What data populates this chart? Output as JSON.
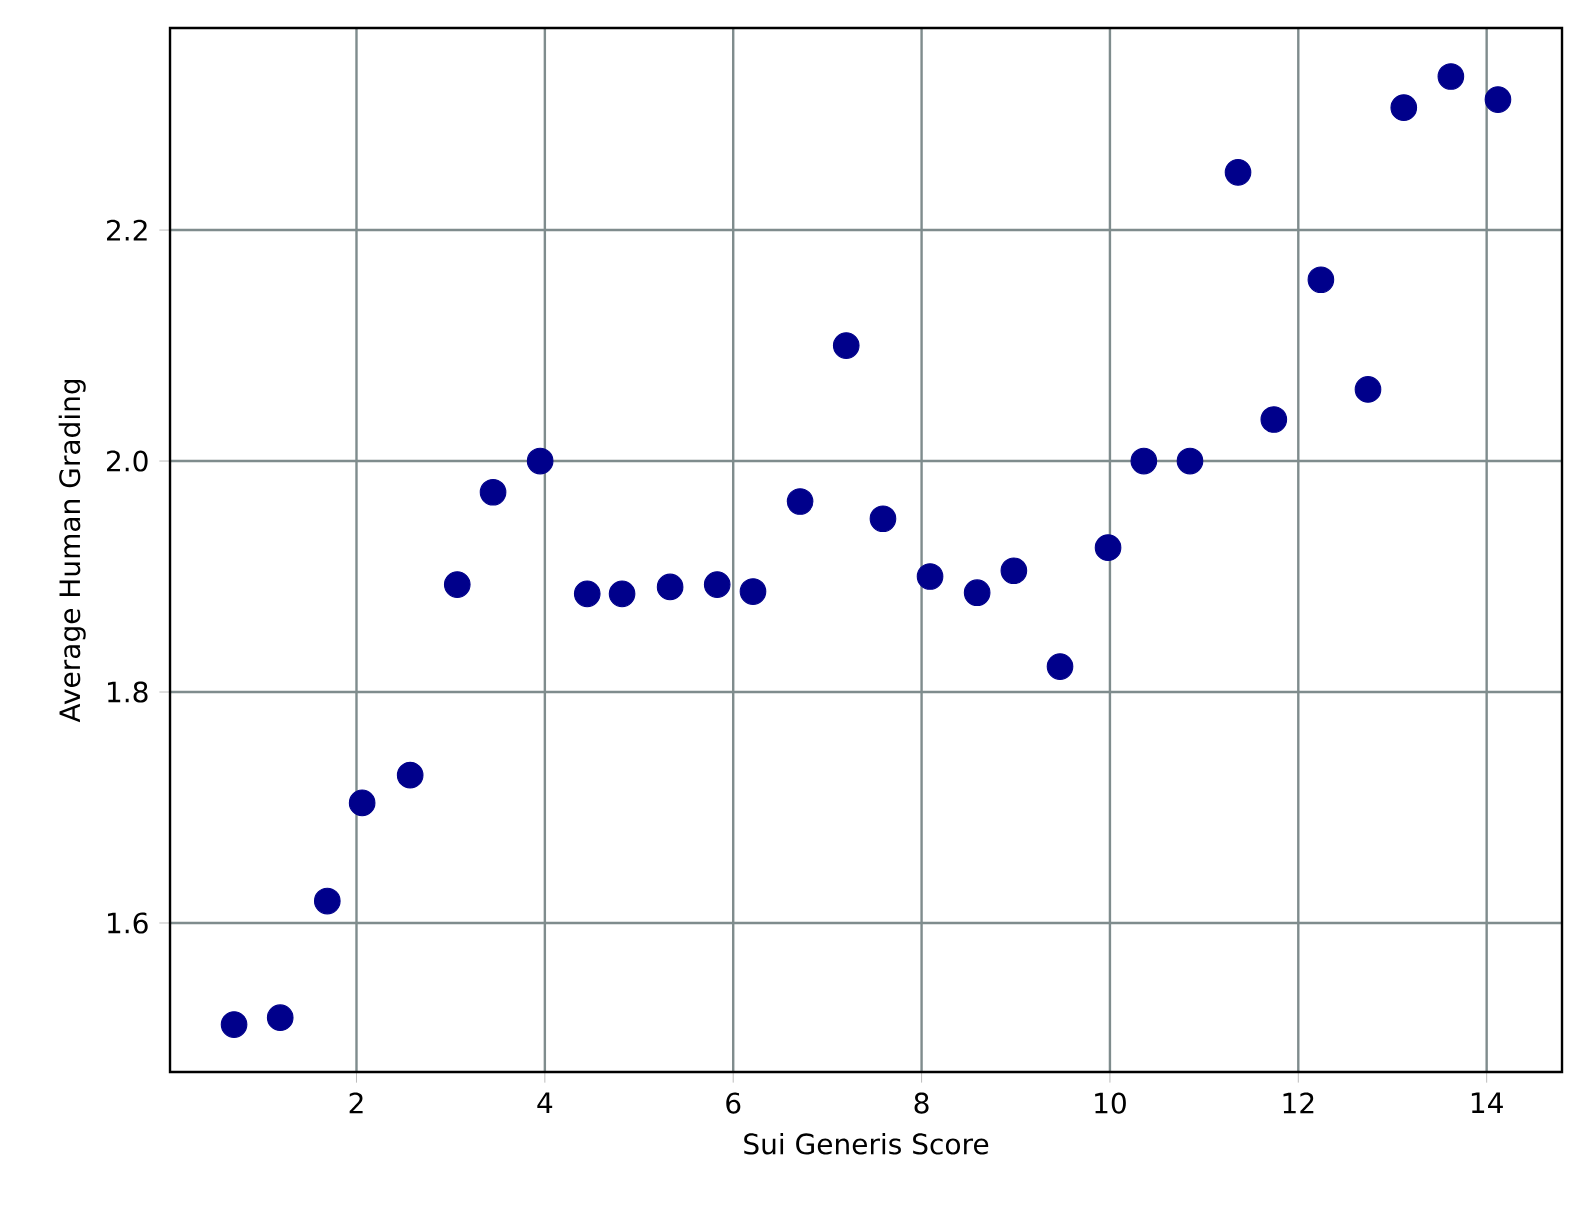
{
  "chart_data": {
    "type": "scatter",
    "xlabel": "Sui Generis Score",
    "ylabel": "Average Human Grading",
    "x": [
      0.7,
      1.19,
      1.69,
      2.06,
      2.57,
      3.07,
      3.45,
      3.95,
      4.45,
      4.82,
      5.33,
      5.83,
      6.21,
      6.71,
      7.2,
      7.59,
      8.09,
      8.59,
      8.98,
      9.47,
      9.98,
      10.36,
      10.85,
      11.36,
      11.74,
      12.24,
      12.74,
      13.12,
      13.62,
      14.12
    ],
    "values": [
      1.512,
      1.518,
      1.619,
      1.704,
      1.728,
      1.893,
      1.973,
      2.0,
      1.885,
      1.885,
      1.891,
      1.893,
      1.887,
      1.965,
      2.1,
      1.95,
      1.9,
      1.886,
      1.905,
      1.822,
      1.925,
      2.0,
      2.0,
      2.25,
      2.036,
      2.157,
      2.062,
      2.306,
      2.333,
      2.313
    ],
    "color": "#00008b",
    "marker": "circle",
    "grid": true,
    "xlim": [
      0.02,
      14.8
    ],
    "ylim": [
      1.471,
      2.375
    ],
    "xticks": [
      2,
      4,
      6,
      8,
      10,
      12,
      14
    ],
    "yticks": [
      1.6,
      1.8,
      {
        "value": 2.0,
        "label": "2.0"
      },
      2.2
    ]
  }
}
